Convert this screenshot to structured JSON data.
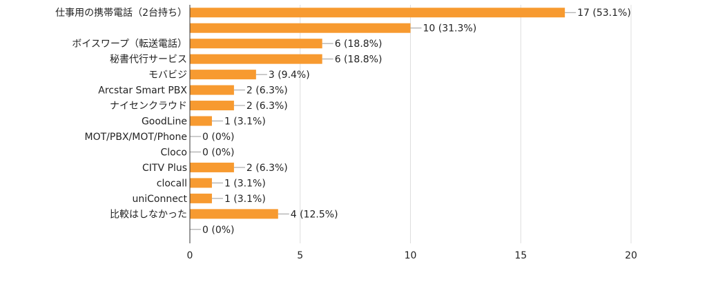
{
  "chart_data": {
    "type": "bar",
    "orientation": "horizontal",
    "categories": [
      "仕事用の携帯電話（2台持ち）",
      "",
      "ボイスワープ（転送電話）",
      "秘書代行サービス",
      "モバビジ",
      "Arcstar Smart PBX",
      "ナイセンクラウド",
      "GoodLine",
      "MOT/PBX/MOT/Phone",
      "Cloco",
      "CITV Plus",
      "clocall",
      "uniConnect",
      "比較はしなかった",
      ""
    ],
    "values": [
      17,
      10,
      6,
      6,
      3,
      2,
      2,
      1,
      0,
      0,
      2,
      1,
      1,
      4,
      0
    ],
    "data_labels": [
      "17 (53.1%)",
      "10 (31.3%)",
      "6 (18.8%)",
      "6 (18.8%)",
      "3 (9.4%)",
      "2 (6.3%)",
      "2 (6.3%)",
      "1 (3.1%)",
      "0 (0%)",
      "0 (0%)",
      "2 (6.3%)",
      "1 (3.1%)",
      "1 (3.1%)",
      "4 (12.5%)",
      "0 (0%)"
    ],
    "x_ticks": [
      "0",
      "5",
      "10",
      "15",
      "20"
    ],
    "xlim": [
      0,
      20
    ],
    "grid": true,
    "colors": {
      "bar": "#f79a30",
      "grid": "#dddddd",
      "axis": "#333333",
      "leader": "#999999",
      "text": "#222222"
    }
  }
}
